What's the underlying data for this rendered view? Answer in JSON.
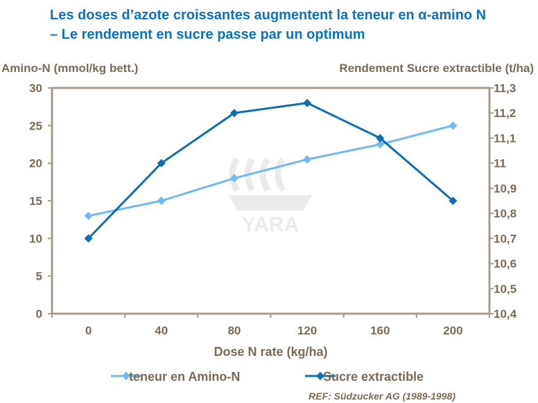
{
  "title": "Les doses d’azote croissantes augmentent la teneur en α-amino N – Le rendement en sucre passe par un optimum",
  "reference": "REF: Südzucker AG (1989-1998)",
  "watermark": "YARA",
  "chart_data": {
    "type": "line",
    "xlabel": "Dose N rate (kg/ha)",
    "ylabel_left": "Amino-N (mmol/kg bett.)",
    "ylabel_right": "Rendement Sucre extractible (t/ha)",
    "categories": [
      "0",
      "40",
      "80",
      "120",
      "160",
      "200"
    ],
    "ylim_left": [
      0,
      30
    ],
    "yticks_left": [
      "0",
      "5",
      "10",
      "15",
      "20",
      "25",
      "30"
    ],
    "ylim_right": [
      10.4,
      11.3
    ],
    "yticks_right": [
      "10,4",
      "10,5",
      "10,6",
      "10,7",
      "10,8",
      "10,9",
      "11",
      "11,1",
      "11,2",
      "11,3"
    ],
    "grid": false,
    "legend": "bottom",
    "series": [
      {
        "name": "teneur en Amino-N",
        "axis": "left",
        "color": "#6fb9f0",
        "values": [
          13,
          15,
          18,
          20.5,
          22.5,
          25
        ]
      },
      {
        "name": "Sucre extractible",
        "axis": "right",
        "color": "#0f6db3",
        "values": [
          10.7,
          11.0,
          11.2,
          11.24,
          11.1,
          10.85
        ]
      }
    ]
  },
  "colors": {
    "title": "#0a72c4",
    "text": "#7b6a55",
    "axis": "#a89a88"
  }
}
